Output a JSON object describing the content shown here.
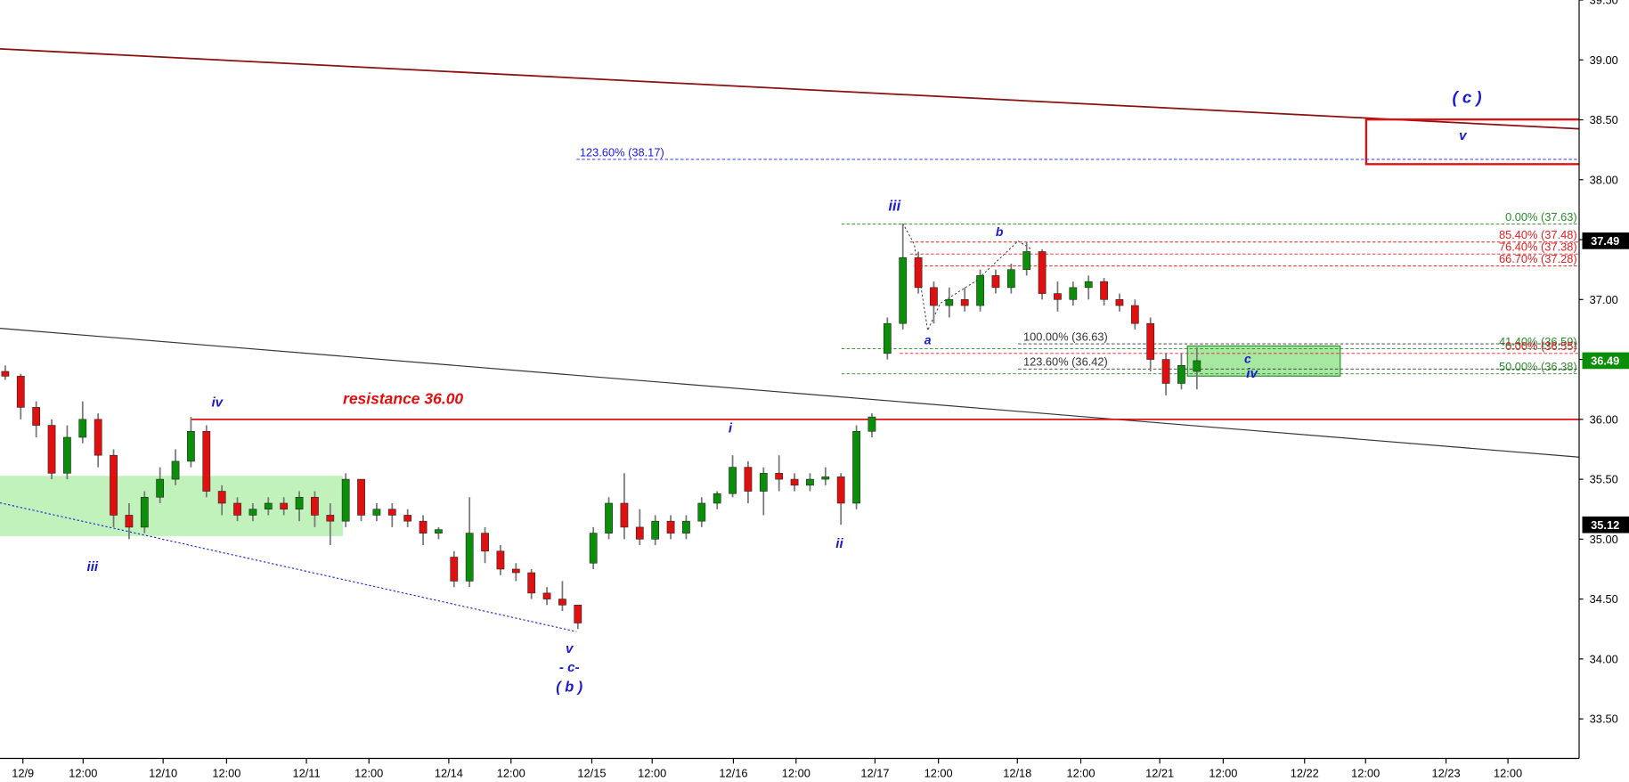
{
  "chart_data": {
    "type": "candlestick",
    "categories": null,
    "candles": [
      [
        36.4,
        36.45,
        36.33,
        36.36
      ],
      [
        36.36,
        36.38,
        36.0,
        36.1
      ],
      [
        36.1,
        36.15,
        35.85,
        35.95
      ],
      [
        35.95,
        36.0,
        35.5,
        35.55
      ],
      [
        35.55,
        35.95,
        35.5,
        35.85
      ],
      [
        35.85,
        36.15,
        35.8,
        36.0
      ],
      [
        36.0,
        36.05,
        35.6,
        35.7
      ],
      [
        35.7,
        35.75,
        35.1,
        35.2
      ],
      [
        35.2,
        35.3,
        35.0,
        35.1
      ],
      [
        35.1,
        35.4,
        35.05,
        35.35
      ],
      [
        35.35,
        35.6,
        35.3,
        35.5
      ],
      [
        35.5,
        35.75,
        35.45,
        35.65
      ],
      [
        35.65,
        36.02,
        35.6,
        35.9
      ],
      [
        35.9,
        35.95,
        35.35,
        35.4
      ],
      [
        35.4,
        35.45,
        35.2,
        35.3
      ],
      [
        35.3,
        35.35,
        35.15,
        35.2
      ],
      [
        35.2,
        35.3,
        35.15,
        35.25
      ],
      [
        35.25,
        35.35,
        35.2,
        35.3
      ],
      [
        35.3,
        35.35,
        35.2,
        35.25
      ],
      [
        35.25,
        35.4,
        35.15,
        35.35
      ],
      [
        35.35,
        35.4,
        35.1,
        35.2
      ],
      [
        35.2,
        35.3,
        34.95,
        35.15
      ],
      [
        35.15,
        35.55,
        35.1,
        35.5
      ],
      [
        35.5,
        35.5,
        35.15,
        35.2
      ],
      [
        35.2,
        35.3,
        35.15,
        35.25
      ],
      [
        35.25,
        35.3,
        35.1,
        35.2
      ],
      [
        35.2,
        35.25,
        35.1,
        35.15
      ],
      [
        35.15,
        35.2,
        34.95,
        35.05
      ],
      [
        35.05,
        35.1,
        35.0,
        35.08
      ],
      [
        34.85,
        34.9,
        34.6,
        34.65
      ],
      [
        34.65,
        35.35,
        34.6,
        35.05
      ],
      [
        35.05,
        35.1,
        34.8,
        34.9
      ],
      [
        34.9,
        34.95,
        34.7,
        34.75
      ],
      [
        34.75,
        34.8,
        34.65,
        34.72
      ],
      [
        34.72,
        34.75,
        34.5,
        34.55
      ],
      [
        34.55,
        34.6,
        34.45,
        34.5
      ],
      [
        34.5,
        34.65,
        34.4,
        34.45
      ],
      [
        34.45,
        34.45,
        34.25,
        34.3
      ],
      [
        34.8,
        35.1,
        34.75,
        35.05
      ],
      [
        35.05,
        35.35,
        35.0,
        35.3
      ],
      [
        35.3,
        35.55,
        35.0,
        35.1
      ],
      [
        35.1,
        35.25,
        34.95,
        35.0
      ],
      [
        35.0,
        35.2,
        34.95,
        35.15
      ],
      [
        35.15,
        35.2,
        35.0,
        35.05
      ],
      [
        35.05,
        35.2,
        35.0,
        35.15
      ],
      [
        35.15,
        35.35,
        35.1,
        35.3
      ],
      [
        35.3,
        35.4,
        35.25,
        35.38
      ],
      [
        35.38,
        35.7,
        35.35,
        35.6
      ],
      [
        35.6,
        35.65,
        35.3,
        35.4
      ],
      [
        35.4,
        35.6,
        35.2,
        35.55
      ],
      [
        35.55,
        35.7,
        35.4,
        35.5
      ],
      [
        35.5,
        35.55,
        35.4,
        35.45
      ],
      [
        35.45,
        35.55,
        35.4,
        35.5
      ],
      [
        35.5,
        35.6,
        35.45,
        35.52
      ],
      [
        35.52,
        35.55,
        35.12,
        35.3
      ],
      [
        35.3,
        35.95,
        35.25,
        35.9
      ],
      [
        35.9,
        36.05,
        35.85,
        36.02
      ],
      [
        36.55,
        36.85,
        36.5,
        36.8
      ],
      [
        36.8,
        37.63,
        36.75,
        37.35
      ],
      [
        37.35,
        37.4,
        37.05,
        37.1
      ],
      [
        37.1,
        37.15,
        36.8,
        36.95
      ],
      [
        36.95,
        37.1,
        36.85,
        37.0
      ],
      [
        37.0,
        37.1,
        36.9,
        36.95
      ],
      [
        36.95,
        37.25,
        36.9,
        37.2
      ],
      [
        37.2,
        37.25,
        37.05,
        37.1
      ],
      [
        37.1,
        37.3,
        37.05,
        37.25
      ],
      [
        37.25,
        37.48,
        37.2,
        37.4
      ],
      [
        37.4,
        37.42,
        37.0,
        37.05
      ],
      [
        37.05,
        37.15,
        36.9,
        37.0
      ],
      [
        37.0,
        37.15,
        36.95,
        37.1
      ],
      [
        37.1,
        37.2,
        37.0,
        37.15
      ],
      [
        37.15,
        37.18,
        36.95,
        37.0
      ],
      [
        37.0,
        37.05,
        36.9,
        36.95
      ],
      [
        36.95,
        37.0,
        36.75,
        36.8
      ],
      [
        36.8,
        36.85,
        36.4,
        36.5
      ],
      [
        36.5,
        36.55,
        36.2,
        36.3
      ],
      [
        36.3,
        36.55,
        36.25,
        36.45
      ],
      [
        36.4,
        36.6,
        36.25,
        36.49
      ]
    ],
    "up_color": "#0b8f0b",
    "down_color": "#e01010",
    "xlim": [
      -0.34,
      101.7
    ],
    "xticks": [
      {
        "value": 1.14,
        "label": "12/9"
      },
      {
        "value": 5.03,
        "label": "12:00"
      },
      {
        "value": 10.2,
        "label": "12/10"
      },
      {
        "value": 14.3,
        "label": "12:00"
      },
      {
        "value": 19.46,
        "label": "12/11"
      },
      {
        "value": 23.5,
        "label": "12:00"
      },
      {
        "value": 28.66,
        "label": "12/14"
      },
      {
        "value": 32.68,
        "label": "12:00"
      },
      {
        "value": 37.9,
        "label": "12/15"
      },
      {
        "value": 41.8,
        "label": "12:00"
      },
      {
        "value": 47.05,
        "label": "12/16"
      },
      {
        "value": 51.1,
        "label": "12:00"
      },
      {
        "value": 56.2,
        "label": "12/17"
      },
      {
        "value": 60.3,
        "label": "12:00"
      },
      {
        "value": 65.4,
        "label": "12/18"
      },
      {
        "value": 69.5,
        "label": "12:00"
      },
      {
        "value": 74.6,
        "label": "12/21"
      },
      {
        "value": 78.7,
        "label": "12:00"
      },
      {
        "value": 83.96,
        "label": "12/22"
      },
      {
        "value": 87.9,
        "label": "12:00"
      },
      {
        "value": 93.1,
        "label": "12/23"
      },
      {
        "value": 97.1,
        "label": "12:00"
      }
    ],
    "ylim": [
      33.17,
      39.5
    ],
    "yticks": [
      {
        "value": 33.5,
        "label": "33.50"
      },
      {
        "value": 34.0,
        "label": "34.00"
      },
      {
        "value": 34.5,
        "label": "34.50"
      },
      {
        "value": 35.0,
        "label": "35.00"
      },
      {
        "value": 35.5,
        "label": "35.50"
      },
      {
        "value": 36.0,
        "label": "36.00"
      },
      {
        "value": 36.5,
        "label": "36.50"
      },
      {
        "value": 37.0,
        "label": "37.00"
      },
      {
        "value": 37.5,
        "label": "37.50"
      },
      {
        "value": 38.0,
        "label": "38.00"
      },
      {
        "value": 38.5,
        "label": "38.50"
      },
      {
        "value": 39.0,
        "label": "39.00"
      },
      {
        "value": 39.5,
        "label": "39.50"
      }
    ],
    "price_markers": [
      {
        "value": 37.49,
        "label": "37.49",
        "color": "#000000"
      },
      {
        "value": 36.49,
        "label": "36.49",
        "color": "#0b8f0b"
      },
      {
        "value": 35.12,
        "label": "35.12",
        "color": "#000000"
      }
    ],
    "resistance": {
      "value": 36.0,
      "label": "resistance 36.00",
      "color": "#e01010"
    },
    "levels": [
      {
        "value": 37.63,
        "label": "0.00% (37.63)",
        "color": "#2a8a2a"
      },
      {
        "value": 37.48,
        "label": "85.40% (37.48)",
        "color": "#e02020"
      },
      {
        "value": 37.38,
        "label": "76.40% (37.38)",
        "color": "#e02020"
      },
      {
        "value": 37.28,
        "label": "66.70% (37.28)",
        "color": "#e02020"
      },
      {
        "value": 36.59,
        "label": "41.40% (36.59)",
        "color": "#2a8a2a"
      },
      {
        "value": 36.55,
        "label": "0.00% (36.55)",
        "color": "#e02020"
      },
      {
        "value": 36.38,
        "label": "50.00% (36.38)",
        "color": "#2a8a2a"
      },
      {
        "value": 36.63,
        "label": "100.00% (36.63)",
        "color": "#333333"
      },
      {
        "value": 36.42,
        "label": "123.60% (36.42)",
        "color": "#333333"
      },
      {
        "value": 38.17,
        "label": "123.60% (38.17)",
        "color": "#1a1ae0"
      }
    ],
    "annotations": [
      "iii",
      "iv",
      "v",
      "- c-",
      "( b )",
      "i",
      "ii",
      "iii",
      "a",
      "b",
      "c",
      "iv",
      "( c )",
      "v"
    ]
  }
}
